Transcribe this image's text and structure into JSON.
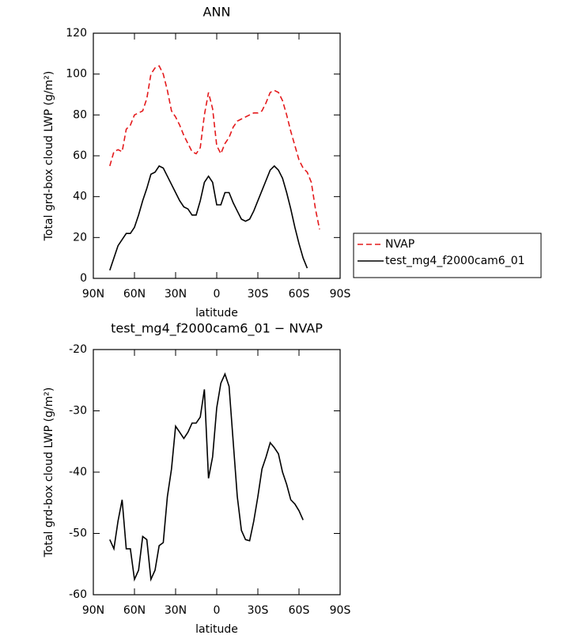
{
  "chart_data": [
    {
      "type": "line",
      "title": "ANN",
      "xlabel": "latitude",
      "ylabel": "Total grd-box cloud LWP (g/m²)",
      "xlim": [
        90,
        -90
      ],
      "xticks": [
        {
          "value": 90,
          "label": "90N"
        },
        {
          "value": 60,
          "label": "60N"
        },
        {
          "value": 30,
          "label": "30N"
        },
        0,
        {
          "value": -30,
          "label": "30S"
        },
        {
          "value": -60,
          "label": "60S"
        },
        {
          "value": -90,
          "label": "90S"
        }
      ],
      "ylim": [
        0,
        120
      ],
      "yticks": [
        0,
        20,
        40,
        60,
        80,
        100,
        120
      ],
      "legend": "right",
      "series": [
        {
          "name": "NVAP",
          "color": "#e41a1c",
          "line_style": "dashed",
          "x": [
            78,
            75,
            72,
            69,
            66,
            63,
            60,
            57,
            54,
            51,
            48,
            45,
            42,
            39,
            36,
            33,
            30,
            27,
            24,
            21,
            18,
            15,
            12,
            9,
            6,
            3,
            0,
            -3,
            -6,
            -9,
            -12,
            -15,
            -18,
            -21,
            -24,
            -27,
            -30,
            -33,
            -36,
            -39,
            -42,
            -45,
            -48,
            -51,
            -54,
            -57,
            -60,
            -63,
            -66,
            -69,
            -72,
            -75
          ],
          "values": [
            55,
            62,
            63,
            62,
            73,
            75,
            80,
            81,
            82,
            88,
            100,
            103,
            104,
            100,
            92,
            82,
            79,
            75,
            70,
            66,
            62,
            61,
            64,
            80,
            91,
            83,
            65,
            61,
            66,
            69,
            74,
            77,
            78,
            79,
            80,
            81,
            81,
            82,
            86,
            91,
            92,
            91,
            87,
            80,
            72,
            65,
            58,
            54,
            52,
            47,
            34,
            24
          ]
        },
        {
          "name": "test_mg4_f2000cam6_01",
          "color": "#000000",
          "line_style": "solid",
          "x": [
            78,
            75,
            72,
            69,
            66,
            63,
            60,
            57,
            54,
            51,
            48,
            45,
            42,
            39,
            36,
            33,
            30,
            27,
            24,
            21,
            18,
            15,
            12,
            9,
            6,
            3,
            0,
            -3,
            -6,
            -9,
            -12,
            -15,
            -18,
            -21,
            -24,
            -27,
            -30,
            -33,
            -36,
            -39,
            -42,
            -45,
            -48,
            -51,
            -54,
            -57,
            -60,
            -63,
            -66
          ],
          "values": [
            4,
            10,
            16,
            19,
            22,
            22,
            25,
            31,
            38,
            44,
            51,
            52,
            55,
            54,
            50,
            46,
            42,
            38,
            35,
            34,
            31,
            31,
            38,
            47,
            50,
            47,
            36,
            36,
            42,
            42,
            37,
            33,
            29,
            28,
            29,
            33,
            38,
            43,
            48,
            53,
            55,
            53,
            49,
            42,
            34,
            25,
            17,
            10,
            5
          ]
        }
      ]
    },
    {
      "type": "line",
      "title": "test_mg4_f2000cam6_01 − NVAP",
      "xlabel": "latitude",
      "ylabel": "Total grd-box cloud LWP (g/m²)",
      "xlim": [
        90,
        -90
      ],
      "xticks": [
        {
          "value": 90,
          "label": "90N"
        },
        {
          "value": 60,
          "label": "60N"
        },
        {
          "value": 30,
          "label": "30N"
        },
        0,
        {
          "value": -30,
          "label": "30S"
        },
        {
          "value": -60,
          "label": "60S"
        },
        {
          "value": -90,
          "label": "90S"
        }
      ],
      "ylim": [
        -60,
        -20
      ],
      "yticks": [
        -60,
        -50,
        -40,
        -30,
        -20
      ],
      "series": [
        {
          "color": "#000000",
          "line_style": "solid",
          "x": [
            78,
            75,
            72,
            69,
            66,
            63,
            60,
            57,
            54,
            51,
            48,
            45,
            42,
            39,
            36,
            33,
            30,
            27,
            24,
            21,
            18,
            15,
            12,
            9,
            6,
            3,
            0,
            -3,
            -6,
            -9,
            -12,
            -15,
            -18,
            -21,
            -24,
            -27,
            -30,
            -33,
            -36,
            -39,
            -42,
            -45,
            -48,
            -51,
            -54,
            -57,
            -60,
            -63
          ],
          "values": [
            -51,
            -52.5,
            -48,
            -44.5,
            -52.5,
            -52.5,
            -57.5,
            -56,
            -50.5,
            -51,
            -57.5,
            -56,
            -52,
            -51.5,
            -44,
            -39.5,
            -32.5,
            -33.5,
            -34.5,
            -33.5,
            -32,
            -32,
            -31,
            -26.5,
            -41,
            -37.5,
            -29.5,
            -25.5,
            -24,
            -26,
            -35,
            -44,
            -49.5,
            -51,
            -51.2,
            -48,
            -44,
            -39.5,
            -37.5,
            -35.2,
            -36,
            -37,
            -40,
            -42,
            -44.5,
            -45.2,
            -46.3,
            -47.8
          ]
        }
      ]
    }
  ]
}
